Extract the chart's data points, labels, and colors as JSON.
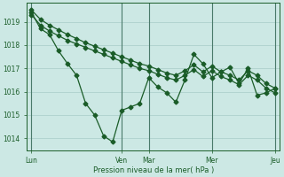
{
  "bg_color": "#cce8e4",
  "line_color": "#1a5c28",
  "grid_color": "#a8ccc8",
  "tick_color": "#1a5c28",
  "xlabel": "Pression niveau de la mer( hPa )",
  "ylim": [
    1013.5,
    1019.8
  ],
  "yticks": [
    1014,
    1015,
    1016,
    1017,
    1018,
    1019
  ],
  "xtick_labels": [
    "Lun",
    "Ven",
    "Mar",
    "Mer",
    "Jeu"
  ],
  "xtick_positions": [
    0,
    10,
    13,
    20,
    27
  ],
  "vline_positions": [
    0,
    10,
    13,
    20,
    27
  ],
  "n_points": 28,
  "series1": [
    1019.5,
    1019.1,
    1018.85,
    1018.65,
    1018.45,
    1018.28,
    1018.1,
    1017.95,
    1017.8,
    1017.65,
    1017.5,
    1017.35,
    1017.2,
    1017.1,
    1016.95,
    1016.8,
    1016.7,
    1016.9,
    1017.15,
    1016.85,
    1017.1,
    1016.85,
    1016.7,
    1016.5,
    1016.9,
    1016.7,
    1016.35,
    1016.15
  ],
  "series2": [
    1019.3,
    1018.85,
    1018.6,
    1018.4,
    1018.2,
    1018.05,
    1017.9,
    1017.75,
    1017.6,
    1017.45,
    1017.3,
    1017.15,
    1017.0,
    1016.9,
    1016.75,
    1016.6,
    1016.5,
    1016.7,
    1016.95,
    1016.65,
    1016.9,
    1016.65,
    1016.5,
    1016.3,
    1016.7,
    1016.5,
    1016.15,
    1015.95
  ],
  "series3": [
    1019.4,
    1018.7,
    1018.45,
    1017.75,
    1017.2,
    1016.7,
    1015.5,
    1015.0,
    1014.1,
    1013.85,
    1015.2,
    1015.35,
    1015.5,
    1016.6,
    1016.2,
    1015.95,
    1015.55,
    1016.5,
    1017.6,
    1017.2,
    1016.6,
    1016.85,
    1017.05,
    1016.35,
    1017.0,
    1015.85,
    1015.95,
    1016.15
  ]
}
